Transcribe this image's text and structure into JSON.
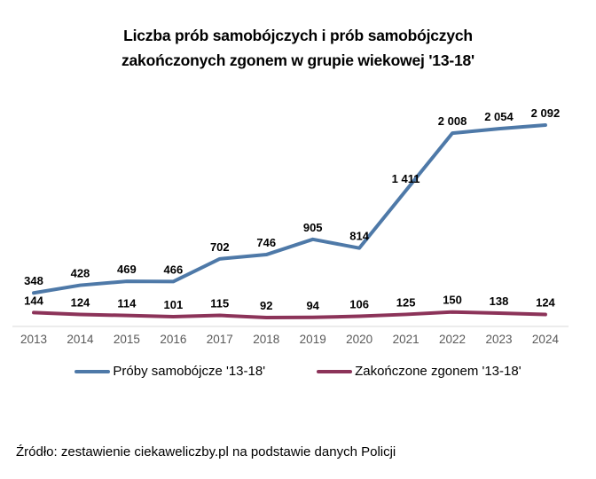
{
  "title": {
    "line1": "Liczba prób samobójczych i prób samobójczych",
    "line2": "zakończonych zgonem w grupie wiekowej '13-18'"
  },
  "source": "Źródło: zestawienie ciekaweliczby.pl na podstawie danych Policji",
  "colors": {
    "attempts": "#4e79a8",
    "deaths": "#8c3359",
    "axis_line": "#d9d9d9",
    "year_label": "#595959",
    "data_label": "#000000"
  },
  "legend": {
    "items": [
      {
        "label": "Próby samobójcze '13-18'",
        "color": "#4e79a8"
      },
      {
        "label": "Zakończone zgonem '13-18'",
        "color": "#8c3359"
      }
    ]
  },
  "chart_data": {
    "type": "line",
    "title": "Liczba prób samobójczych i prób samobójczych zakończonych zgonem w grupie wiekowej '13-18'",
    "categories": [
      "2013",
      "2014",
      "2015",
      "2016",
      "2017",
      "2018",
      "2019",
      "2020",
      "2021",
      "2022",
      "2023",
      "2024"
    ],
    "series": [
      {
        "name": "Próby samobójcze '13-18'",
        "color": "#4e79a8",
        "values": [
          348,
          428,
          469,
          466,
          702,
          746,
          905,
          814,
          1411,
          2008,
          2054,
          2092
        ],
        "labels": [
          "348",
          "428",
          "469",
          "466",
          "702",
          "746",
          "905",
          "814",
          "1 411",
          "2 008",
          "2 054",
          "2 092"
        ]
      },
      {
        "name": "Zakończone zgonem '13-18'",
        "color": "#8c3359",
        "values": [
          144,
          124,
          114,
          101,
          115,
          92,
          94,
          106,
          125,
          150,
          138,
          124
        ],
        "labels": [
          "144",
          "124",
          "114",
          "101",
          "115",
          "92",
          "94",
          "106",
          "125",
          "150",
          "138",
          "124"
        ]
      }
    ],
    "xlabel": "",
    "ylabel": "",
    "ylim": [
      0,
      2600
    ],
    "grid": false,
    "data_labels": true,
    "legend_position": "bottom"
  }
}
